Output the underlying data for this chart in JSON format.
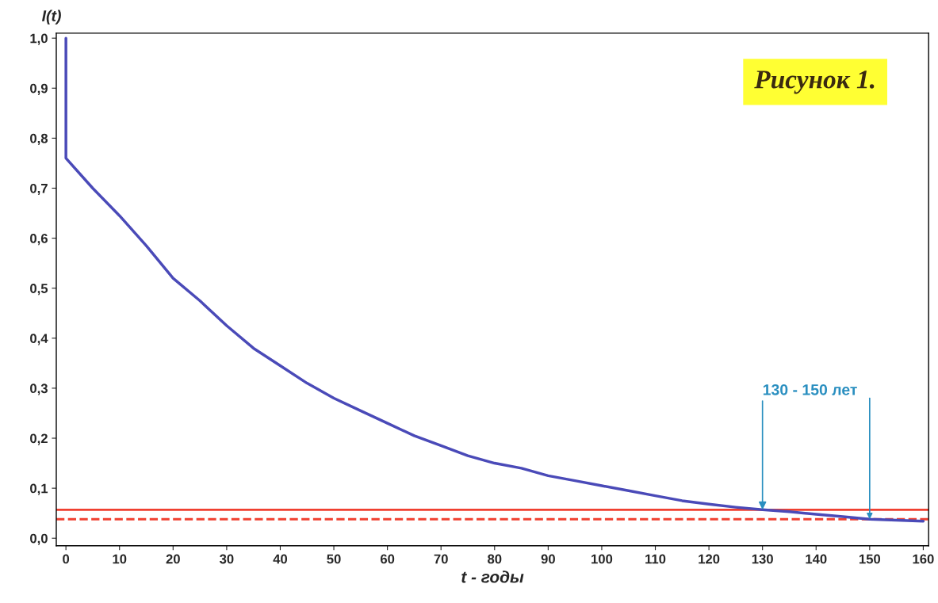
{
  "chart_data": {
    "type": "line",
    "title": "Рисунок 1.",
    "xlabel": "t - годы",
    "ylabel": "I(t)",
    "series": [
      {
        "color": "#4a4ab8",
        "x": [
          0,
          0,
          5,
          10,
          15,
          20,
          25,
          30,
          35,
          40,
          45,
          50,
          55,
          60,
          65,
          70,
          75,
          80,
          85,
          90,
          95,
          100,
          105,
          110,
          115,
          120,
          125,
          130,
          135,
          140,
          145,
          150,
          155,
          160
        ],
        "values": [
          1.0,
          0.76,
          0.7,
          0.645,
          0.585,
          0.52,
          0.475,
          0.425,
          0.38,
          0.345,
          0.31,
          0.28,
          0.255,
          0.23,
          0.205,
          0.185,
          0.165,
          0.15,
          0.14,
          0.125,
          0.115,
          0.105,
          0.095,
          0.085,
          0.075,
          0.068,
          0.062,
          0.057,
          0.053,
          0.048,
          0.043,
          0.038,
          0.036,
          0.034
        ]
      }
    ],
    "ref_lines": [
      {
        "axis": "y",
        "value": 0.057,
        "color": "#f04030",
        "line_style": "solid"
      },
      {
        "axis": "y",
        "value": 0.038,
        "color": "#f04030",
        "line_style": "dashed"
      }
    ],
    "annotations": [
      {
        "text": "130 - 150 лет",
        "x": 130,
        "y": 0.057
      }
    ],
    "xlim": [
      -1.8,
      161
    ],
    "ylim": [
      -0.015,
      1.01
    ],
    "xticks": [
      0,
      10,
      20,
      30,
      40,
      50,
      60,
      70,
      80,
      90,
      100,
      110,
      120,
      130,
      140,
      150,
      160
    ],
    "yticks": [
      {
        "value": 0,
        "label": "0,0"
      },
      {
        "value": 0.1,
        "label": "0,1"
      },
      {
        "value": 0.2,
        "label": "0,2"
      },
      {
        "value": 0.3,
        "label": "0,3"
      },
      {
        "value": 0.4,
        "label": "0,4"
      },
      {
        "value": 0.5,
        "label": "0,5"
      },
      {
        "value": 0.6,
        "label": "0,6"
      },
      {
        "value": 0.7,
        "label": "0,7"
      },
      {
        "value": 0.8,
        "label": "0,8"
      },
      {
        "value": 0.9,
        "label": "0,9"
      },
      {
        "value": 1.0,
        "label": "1,0"
      }
    ],
    "grid": false,
    "marker": "none",
    "line_style": "solid"
  }
}
